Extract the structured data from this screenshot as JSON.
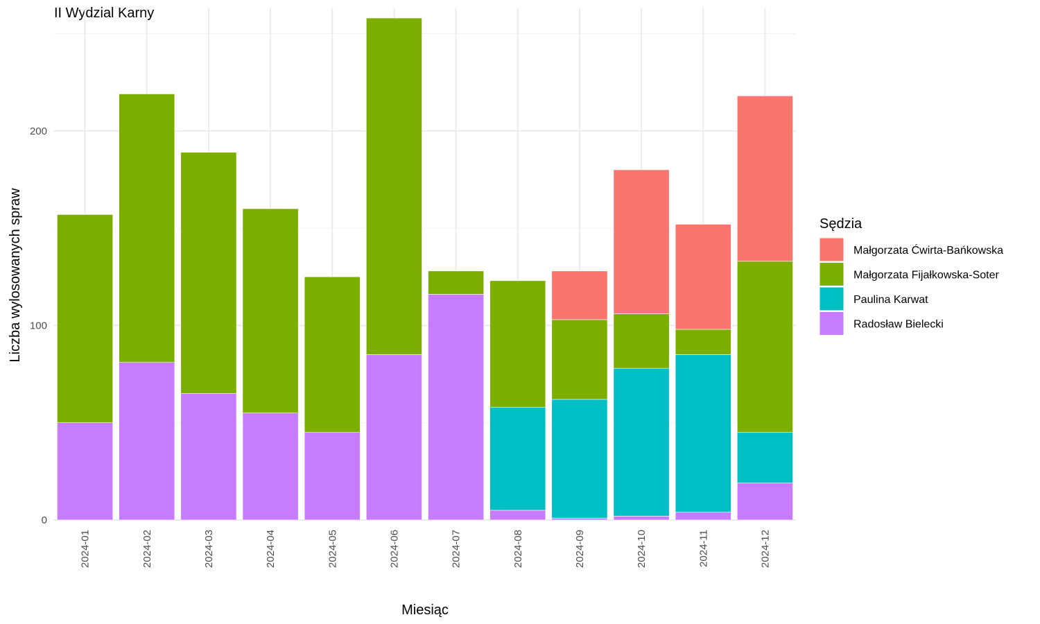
{
  "chart_data": {
    "type": "bar",
    "stacked": true,
    "title": "II Wydzial Karny",
    "xlabel": "Miesiąc",
    "ylabel": "Liczba wylosowanych spraw",
    "ylim": [
      0,
      263
    ],
    "y_ticks": [
      0,
      100,
      200
    ],
    "grid": true,
    "legend_title": "Sędzia",
    "legend_position": "right",
    "categories": [
      "2024-01",
      "2024-02",
      "2024-03",
      "2024-04",
      "2024-05",
      "2024-06",
      "2024-07",
      "2024-08",
      "2024-09",
      "2024-10",
      "2024-11",
      "2024-12"
    ],
    "series": [
      {
        "name": "Radosław Bielecki",
        "color": "#C77CFF",
        "values": [
          50,
          81,
          65,
          55,
          45,
          85,
          116,
          5,
          1,
          2,
          4,
          19
        ]
      },
      {
        "name": "Paulina Karwat",
        "color": "#00BFC4",
        "values": [
          0,
          0,
          0,
          0,
          0,
          0,
          0,
          53,
          61,
          76,
          81,
          26
        ]
      },
      {
        "name": "Małgorzata Fijałkowska-Soter",
        "color": "#7CAE00",
        "values": [
          107,
          138,
          124,
          105,
          80,
          173,
          12,
          65,
          41,
          28,
          13,
          88
        ]
      },
      {
        "name": "Małgorzata Ćwirta-Bańkowska",
        "color": "#F8766D",
        "values": [
          0,
          0,
          0,
          0,
          0,
          0,
          0,
          0,
          25,
          74,
          54,
          85
        ]
      }
    ],
    "legend_order": [
      "Małgorzata Ćwirta-Bańkowska",
      "Małgorzata Fijałkowska-Soter",
      "Paulina Karwat",
      "Radosław Bielecki"
    ]
  }
}
